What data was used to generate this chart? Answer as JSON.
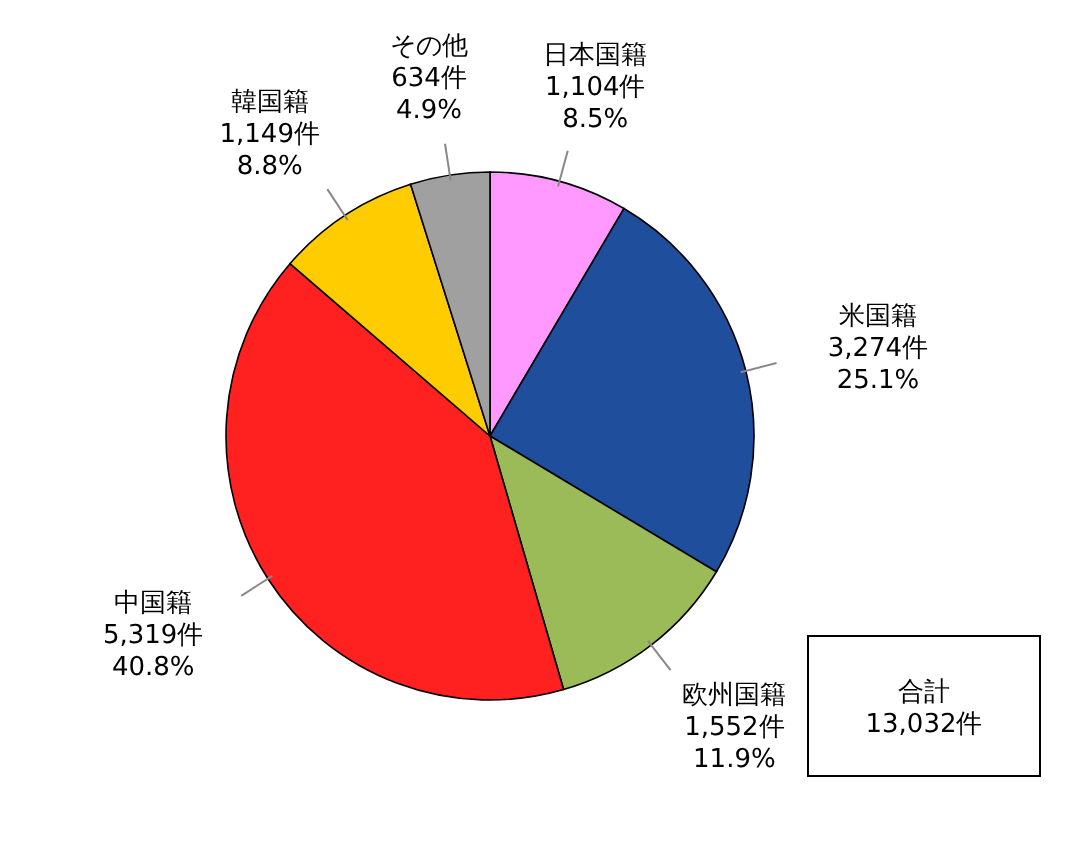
{
  "chart_data": {
    "type": "pie",
    "categories": [
      "日本国籍",
      "米国籍",
      "欧州国籍",
      "中国籍",
      "韓国籍",
      "その他"
    ],
    "values": [
      1104,
      3274,
      1552,
      5319,
      1149,
      634
    ],
    "value_labels": [
      "1,104件\n8.5%",
      "3,274件\n25.1%",
      "1,552件\n11.9%",
      "5,319件\n40.8%",
      "1,149件\n8.8%",
      "634件\n4.9%"
    ],
    "colors": [
      "#ff99ff",
      "#1f4e9c",
      "#9bbb59",
      "#ff2020",
      "#ffcc00",
      "#a0a0a0"
    ],
    "annotations": [
      "合計",
      "13,032件"
    ]
  }
}
